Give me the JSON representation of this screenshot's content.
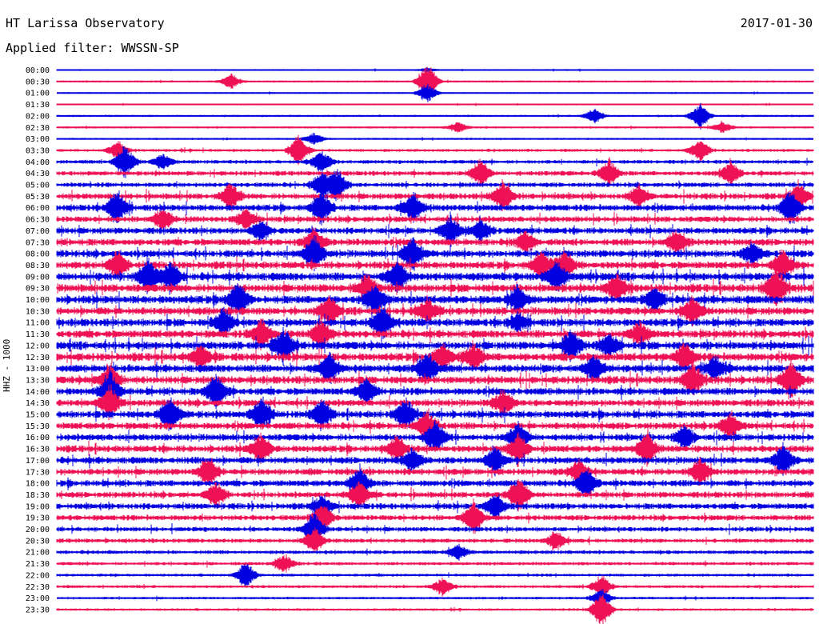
{
  "header": {
    "station": "HT Larissa Observatory",
    "date": "2017-01-30",
    "filter_label": "Applied filter:",
    "filter_value": "WWSSN-SP"
  },
  "chart_data": {
    "type": "line",
    "title": "HT Larissa Observatory",
    "ylabel": "HHZ - 1000",
    "trace_colors": [
      "#0000e0",
      "#ee1155"
    ],
    "rows": [
      {
        "label": "00:00",
        "activity": 0.2,
        "events": [
          [
            0.49,
            0.1
          ]
        ]
      },
      {
        "label": "00:30",
        "activity": 0.25,
        "events": [
          [
            0.23,
            0.4
          ],
          [
            0.49,
            1.0
          ]
        ]
      },
      {
        "label": "01:00",
        "activity": 0.2,
        "events": [
          [
            0.49,
            0.5
          ]
        ]
      },
      {
        "label": "01:30",
        "activity": 0.2,
        "events": []
      },
      {
        "label": "02:00",
        "activity": 0.25,
        "events": [
          [
            0.85,
            0.7
          ],
          [
            0.71,
            0.4
          ]
        ]
      },
      {
        "label": "02:30",
        "activity": 0.25,
        "events": [
          [
            0.53,
            0.3
          ],
          [
            0.88,
            0.3
          ]
        ]
      },
      {
        "label": "03:00",
        "activity": 0.25,
        "events": [
          [
            0.34,
            0.3
          ]
        ]
      },
      {
        "label": "03:30",
        "activity": 0.35,
        "events": [
          [
            0.32,
            0.8
          ],
          [
            0.85,
            0.6
          ],
          [
            0.08,
            0.5
          ]
        ]
      },
      {
        "label": "04:00",
        "activity": 0.45,
        "events": [
          [
            0.09,
            0.9
          ],
          [
            0.14,
            0.4
          ],
          [
            0.35,
            0.6
          ]
        ]
      },
      {
        "label": "04:30",
        "activity": 0.55,
        "events": [
          [
            0.56,
            0.7
          ],
          [
            0.73,
            0.7
          ],
          [
            0.89,
            0.6
          ]
        ]
      },
      {
        "label": "05:00",
        "activity": 0.55,
        "events": [
          [
            0.37,
            0.8
          ],
          [
            0.35,
            0.7
          ]
        ]
      },
      {
        "label": "05:30",
        "activity": 0.7,
        "events": [
          [
            0.23,
            0.7
          ],
          [
            0.59,
            0.8
          ],
          [
            0.77,
            0.6
          ],
          [
            0.98,
            0.7
          ]
        ]
      },
      {
        "label": "06:00",
        "activity": 0.75,
        "events": [
          [
            0.08,
            0.9
          ],
          [
            0.35,
            0.9
          ],
          [
            0.47,
            0.8
          ],
          [
            0.97,
            0.9
          ]
        ]
      },
      {
        "label": "06:30",
        "activity": 0.7,
        "events": [
          [
            0.14,
            0.6
          ],
          [
            0.25,
            0.5
          ]
        ]
      },
      {
        "label": "07:00",
        "activity": 0.75,
        "events": [
          [
            0.52,
            0.7
          ],
          [
            0.56,
            0.6
          ],
          [
            0.27,
            0.5
          ]
        ]
      },
      {
        "label": "07:30",
        "activity": 0.8,
        "events": [
          [
            0.34,
            0.7
          ],
          [
            0.62,
            0.5
          ],
          [
            0.82,
            0.6
          ]
        ]
      },
      {
        "label": "08:00",
        "activity": 0.85,
        "events": [
          [
            0.34,
            0.9
          ],
          [
            0.47,
            0.9
          ],
          [
            0.92,
            0.6
          ]
        ]
      },
      {
        "label": "08:30",
        "activity": 0.85,
        "events": [
          [
            0.08,
            0.7
          ],
          [
            0.64,
            0.8
          ],
          [
            0.67,
            0.8
          ],
          [
            0.96,
            0.8
          ]
        ]
      },
      {
        "label": "09:00",
        "activity": 0.95,
        "events": [
          [
            0.12,
            1.0
          ],
          [
            0.15,
            0.8
          ],
          [
            0.45,
            0.8
          ],
          [
            0.66,
            0.8
          ]
        ]
      },
      {
        "label": "09:30",
        "activity": 0.95,
        "events": [
          [
            0.41,
            0.7
          ],
          [
            0.74,
            0.8
          ],
          [
            0.95,
            1.0
          ]
        ]
      },
      {
        "label": "10:00",
        "activity": 0.95,
        "events": [
          [
            0.24,
            1.0
          ],
          [
            0.42,
            0.8
          ],
          [
            0.61,
            0.7
          ],
          [
            0.79,
            0.6
          ]
        ]
      },
      {
        "label": "10:30",
        "activity": 0.9,
        "events": [
          [
            0.36,
            0.8
          ],
          [
            0.49,
            0.6
          ],
          [
            0.84,
            0.8
          ]
        ]
      },
      {
        "label": "11:00",
        "activity": 0.9,
        "events": [
          [
            0.43,
            0.9
          ],
          [
            0.22,
            0.7
          ],
          [
            0.61,
            0.5
          ]
        ]
      },
      {
        "label": "11:30",
        "activity": 0.9,
        "events": [
          [
            0.27,
            0.8
          ],
          [
            0.35,
            0.8
          ],
          [
            0.77,
            0.6
          ]
        ]
      },
      {
        "label": "12:00",
        "activity": 0.95,
        "events": [
          [
            0.3,
            0.9
          ],
          [
            0.68,
            0.8
          ],
          [
            0.73,
            0.6
          ]
        ]
      },
      {
        "label": "12:30",
        "activity": 0.95,
        "events": [
          [
            0.19,
            0.6
          ],
          [
            0.51,
            0.7
          ],
          [
            0.55,
            0.7
          ],
          [
            0.83,
            0.7
          ]
        ]
      },
      {
        "label": "13:00",
        "activity": 0.9,
        "events": [
          [
            0.36,
            0.8
          ],
          [
            0.49,
            0.8
          ],
          [
            0.71,
            0.8
          ],
          [
            0.87,
            0.7
          ]
        ]
      },
      {
        "label": "13:30",
        "activity": 0.9,
        "events": [
          [
            0.07,
            0.9
          ],
          [
            0.84,
            0.8
          ],
          [
            0.97,
            1.0
          ]
        ]
      },
      {
        "label": "14:00",
        "activity": 0.85,
        "events": [
          [
            0.07,
            1.0
          ],
          [
            0.21,
            0.9
          ],
          [
            0.41,
            0.7
          ]
        ]
      },
      {
        "label": "14:30",
        "activity": 0.8,
        "events": [
          [
            0.59,
            0.7
          ],
          [
            0.07,
            0.8
          ]
        ]
      },
      {
        "label": "15:00",
        "activity": 0.85,
        "events": [
          [
            0.15,
            0.9
          ],
          [
            0.27,
            0.9
          ],
          [
            0.35,
            0.8
          ],
          [
            0.46,
            0.8
          ]
        ]
      },
      {
        "label": "15:30",
        "activity": 0.8,
        "events": [
          [
            0.49,
            0.8
          ],
          [
            0.89,
            0.6
          ]
        ]
      },
      {
        "label": "16:00",
        "activity": 0.8,
        "events": [
          [
            0.5,
            0.9
          ],
          [
            0.61,
            0.8
          ],
          [
            0.83,
            0.6
          ]
        ]
      },
      {
        "label": "16:30",
        "activity": 0.8,
        "events": [
          [
            0.27,
            0.8
          ],
          [
            0.45,
            0.7
          ],
          [
            0.61,
            0.8
          ],
          [
            0.78,
            0.9
          ]
        ]
      },
      {
        "label": "17:00",
        "activity": 0.8,
        "events": [
          [
            0.58,
            0.7
          ],
          [
            0.96,
            0.8
          ],
          [
            0.47,
            0.6
          ]
        ]
      },
      {
        "label": "17:30",
        "activity": 0.75,
        "events": [
          [
            0.2,
            0.8
          ],
          [
            0.69,
            0.6
          ],
          [
            0.85,
            0.7
          ]
        ]
      },
      {
        "label": "18:00",
        "activity": 0.75,
        "events": [
          [
            0.4,
            0.9
          ],
          [
            0.7,
            0.8
          ]
        ]
      },
      {
        "label": "18:30",
        "activity": 0.7,
        "events": [
          [
            0.21,
            0.6
          ],
          [
            0.4,
            0.7
          ],
          [
            0.61,
            0.9
          ]
        ]
      },
      {
        "label": "19:00",
        "activity": 0.7,
        "events": [
          [
            0.58,
            0.7
          ],
          [
            0.35,
            0.6
          ]
        ]
      },
      {
        "label": "19:30",
        "activity": 0.65,
        "events": [
          [
            0.35,
            0.8
          ],
          [
            0.55,
            0.9
          ]
        ]
      },
      {
        "label": "20:00",
        "activity": 0.55,
        "events": [
          [
            0.34,
            1.0
          ]
        ]
      },
      {
        "label": "20:30",
        "activity": 0.5,
        "events": [
          [
            0.34,
            0.7
          ],
          [
            0.66,
            0.5
          ]
        ]
      },
      {
        "label": "21:00",
        "activity": 0.45,
        "events": [
          [
            0.53,
            0.4
          ]
        ]
      },
      {
        "label": "21:30",
        "activity": 0.4,
        "events": [
          [
            0.3,
            0.5
          ]
        ]
      },
      {
        "label": "22:00",
        "activity": 0.35,
        "events": [
          [
            0.25,
            0.7
          ]
        ]
      },
      {
        "label": "22:30",
        "activity": 0.35,
        "events": [
          [
            0.72,
            0.6
          ],
          [
            0.51,
            0.5
          ]
        ]
      },
      {
        "label": "23:00",
        "activity": 0.3,
        "events": [
          [
            0.72,
            0.5
          ]
        ]
      },
      {
        "label": "23:30",
        "activity": 0.3,
        "events": [
          [
            0.72,
            1.0
          ]
        ]
      }
    ]
  }
}
